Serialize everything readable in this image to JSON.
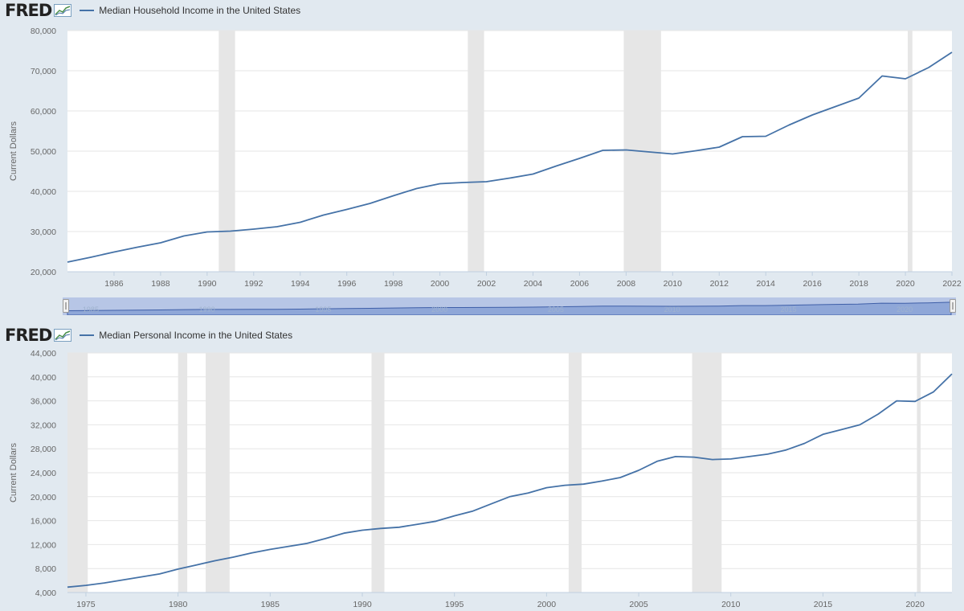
{
  "branding": {
    "logo_text": "FRED"
  },
  "charts": [
    {
      "title": "Median Household Income in the United States",
      "navigator_labels": [
        "1985",
        "1990",
        "1995",
        "2000",
        "2005",
        "2010",
        "2015",
        "2020"
      ]
    },
    {
      "title": "Median Personal Income in the United States"
    }
  ],
  "colors": {
    "line": "#4572a7",
    "recession": "#e6e6e6",
    "plot_bg": "#ffffff",
    "page_bg": "#e1e9f0",
    "navigator_fill": "#8fa7d8"
  },
  "chart_data": [
    {
      "type": "line",
      "ylabel": "Current Dollars",
      "xlim": [
        1984,
        2022
      ],
      "ylim": [
        20000,
        80000
      ],
      "yticks": [
        20000,
        30000,
        40000,
        50000,
        60000,
        70000,
        80000
      ],
      "ytick_labels": [
        "20,000",
        "30,000",
        "40,000",
        "50,000",
        "60,000",
        "70,000",
        "80,000"
      ],
      "xticks": [
        1986,
        1988,
        1990,
        1992,
        1994,
        1996,
        1998,
        2000,
        2002,
        2004,
        2006,
        2008,
        2010,
        2012,
        2014,
        2016,
        2018,
        2020,
        2022
      ],
      "recessions": [
        [
          1990.5,
          1991.2
        ],
        [
          2001.2,
          2001.9
        ],
        [
          2007.9,
          2009.5
        ],
        [
          2020.1,
          2020.3
        ]
      ],
      "grid": true,
      "legend": "top-left",
      "series": [
        {
          "name": "Median Household Income in the United States",
          "x": [
            1984,
            1985,
            1986,
            1987,
            1988,
            1989,
            1990,
            1991,
            1992,
            1993,
            1994,
            1995,
            1996,
            1997,
            1998,
            1999,
            2000,
            2001,
            2002,
            2003,
            2004,
            2005,
            2006,
            2007,
            2008,
            2009,
            2010,
            2011,
            2012,
            2013,
            2014,
            2015,
            2016,
            2017,
            2018,
            2019,
            2020,
            2021,
            2022
          ],
          "y": [
            22400,
            23600,
            24900,
            26100,
            27200,
            28900,
            29900,
            30100,
            30600,
            31200,
            32300,
            34100,
            35500,
            37000,
            38900,
            40700,
            41900,
            42200,
            42400,
            43300,
            44300,
            46300,
            48200,
            50200,
            50300,
            49800,
            49300,
            50100,
            51000,
            53600,
            53700,
            56500,
            59000,
            61100,
            63200,
            68700,
            68000,
            70800,
            74600
          ]
        }
      ]
    },
    {
      "type": "line",
      "ylabel": "Current Dollars",
      "xlim": [
        1974,
        2022
      ],
      "ylim": [
        4000,
        44000
      ],
      "yticks": [
        4000,
        8000,
        12000,
        16000,
        20000,
        24000,
        28000,
        32000,
        36000,
        40000,
        44000
      ],
      "ytick_labels": [
        "4,000",
        "8,000",
        "12,000",
        "16,000",
        "20,000",
        "24,000",
        "28,000",
        "32,000",
        "36,000",
        "40,000",
        "44,000"
      ],
      "xticks": [
        1975,
        1980,
        1985,
        1990,
        1995,
        2000,
        2005,
        2010,
        2015,
        2020
      ],
      "recessions": [
        [
          1974,
          1975.1
        ],
        [
          1980,
          1980.5
        ],
        [
          1981.5,
          1982.8
        ],
        [
          1990.5,
          1991.2
        ],
        [
          2001.2,
          2001.9
        ],
        [
          2007.9,
          2009.5
        ],
        [
          2020.1,
          2020.3
        ]
      ],
      "grid": true,
      "legend": "top-left",
      "series": [
        {
          "name": "Median Personal Income in the United States",
          "x": [
            1974,
            1975,
            1976,
            1977,
            1978,
            1979,
            1980,
            1981,
            1982,
            1983,
            1984,
            1985,
            1986,
            1987,
            1988,
            1989,
            1990,
            1991,
            1992,
            1993,
            1994,
            1995,
            1996,
            1997,
            1998,
            1999,
            2000,
            2001,
            2002,
            2003,
            2004,
            2005,
            2006,
            2007,
            2008,
            2009,
            2010,
            2011,
            2012,
            2013,
            2014,
            2015,
            2016,
            2017,
            2018,
            2019,
            2020,
            2021,
            2022
          ],
          "y": [
            4900,
            5200,
            5600,
            6100,
            6600,
            7100,
            7900,
            8600,
            9300,
            9900,
            10600,
            11200,
            11700,
            12200,
            13000,
            13900,
            14400,
            14700,
            14900,
            15400,
            15900,
            16800,
            17600,
            18800,
            20000,
            20600,
            21500,
            21900,
            22100,
            22600,
            23200,
            24400,
            25900,
            26700,
            26600,
            26200,
            26300,
            26700,
            27100,
            27800,
            28900,
            30400,
            31200,
            32000,
            33800,
            36000,
            35900,
            37500,
            40500
          ]
        }
      ]
    }
  ]
}
